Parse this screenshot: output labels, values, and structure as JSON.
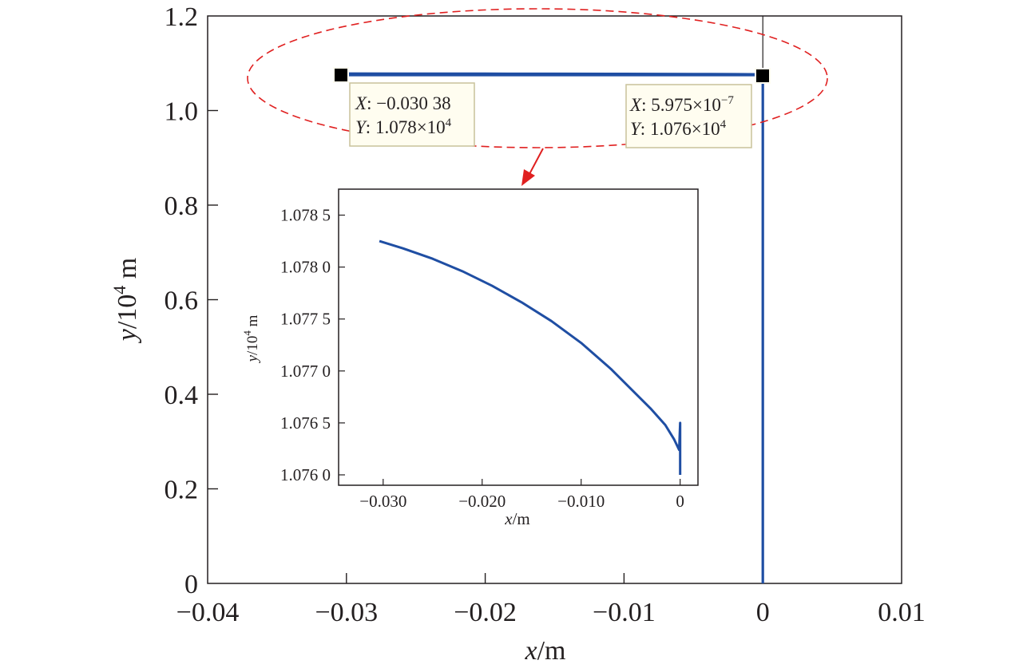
{
  "colors": {
    "curve": "#1f4ea3",
    "frame": "#231f20",
    "highlight_ellipse": "#e02020",
    "tooltip_bg": "#fffdf0",
    "tooltip_border": "#c9c29a"
  },
  "chart_data": [
    {
      "type": "line",
      "role": "main",
      "xlabel": "x/m",
      "xlabel_var": "x",
      "xlabel_unit": "/m",
      "ylabel": "y/10^4 m",
      "ylabel_var": "y",
      "ylabel_unit_pre": "/10",
      "ylabel_exp": "4",
      "ylabel_unit_post": " m",
      "xlim": [
        -0.04,
        0.01
      ],
      "ylim": [
        0,
        1.2
      ],
      "x_ticks": [
        -0.04,
        -0.03,
        -0.02,
        -0.01,
        0,
        0.01
      ],
      "x_tick_labels": [
        "−0.04",
        "−0.03",
        "−0.02",
        "−0.01",
        "0",
        "0.01"
      ],
      "y_ticks": [
        0,
        0.2,
        0.4,
        0.6,
        0.8,
        1.0,
        1.2
      ],
      "y_tick_labels": [
        "0",
        "0.2",
        "0.4",
        "0.6",
        "0.8",
        "1.0",
        "1.2"
      ],
      "grid": false,
      "series": [
        {
          "x": [
            -0.03038,
            -0.025,
            -0.02,
            -0.015,
            -0.01,
            -0.005,
            -0.002,
            0,
            0,
            0
          ],
          "y": [
            1.078,
            1.0779,
            1.0778,
            1.0776,
            1.0774,
            1.0771,
            1.0768,
            1.0765,
            0.5,
            0
          ]
        }
      ],
      "annotations": [
        {
          "x": -0.03038,
          "y": 1.078,
          "x_label": "X",
          "x_text": "−0.030 38",
          "y_label": "Y",
          "y_text": "1.078×10",
          "y_exp": "4"
        },
        {
          "x": 5.975e-07,
          "y": 1.076,
          "x_label": "X",
          "x_text": "5.975×10",
          "x_exp": "−7",
          "y_label": "Y",
          "y_text": "1.076×10",
          "y_exp": "4"
        }
      ]
    },
    {
      "type": "line",
      "role": "inset",
      "xlabel": "x/m",
      "xlabel_var": "x",
      "xlabel_unit": "/m",
      "ylabel": "y/10^4 m",
      "ylabel_var": "y",
      "ylabel_unit_pre": "/10",
      "ylabel_exp": "4",
      "ylabel_unit_post": " m",
      "xlim": [
        -0.0345,
        0.0018
      ],
      "ylim": [
        1.0759,
        1.07875
      ],
      "x_ticks": [
        -0.03,
        -0.02,
        -0.01,
        0
      ],
      "x_tick_labels": [
        "−0.030",
        "−0.020",
        "−0.010",
        "0"
      ],
      "y_ticks": [
        1.076,
        1.0765,
        1.077,
        1.0775,
        1.078,
        1.0785
      ],
      "y_tick_labels": [
        "1.076 0",
        "1.076 5",
        "1.077 0",
        "1.077 5",
        "1.078 0",
        "1.078 5"
      ],
      "grid": false,
      "series": [
        {
          "x": [
            -0.03038,
            -0.028,
            -0.025,
            -0.022,
            -0.019,
            -0.016,
            -0.013,
            -0.01,
            -0.007,
            -0.005,
            -0.003,
            -0.0015,
            -0.0006,
            -0.0001,
            0,
            0
          ],
          "y": [
            1.07825,
            1.07818,
            1.07808,
            1.07796,
            1.07782,
            1.07766,
            1.07748,
            1.07727,
            1.07702,
            1.07683,
            1.07664,
            1.07648,
            1.07634,
            1.07624,
            1.0765,
            1.076
          ]
        }
      ]
    }
  ]
}
